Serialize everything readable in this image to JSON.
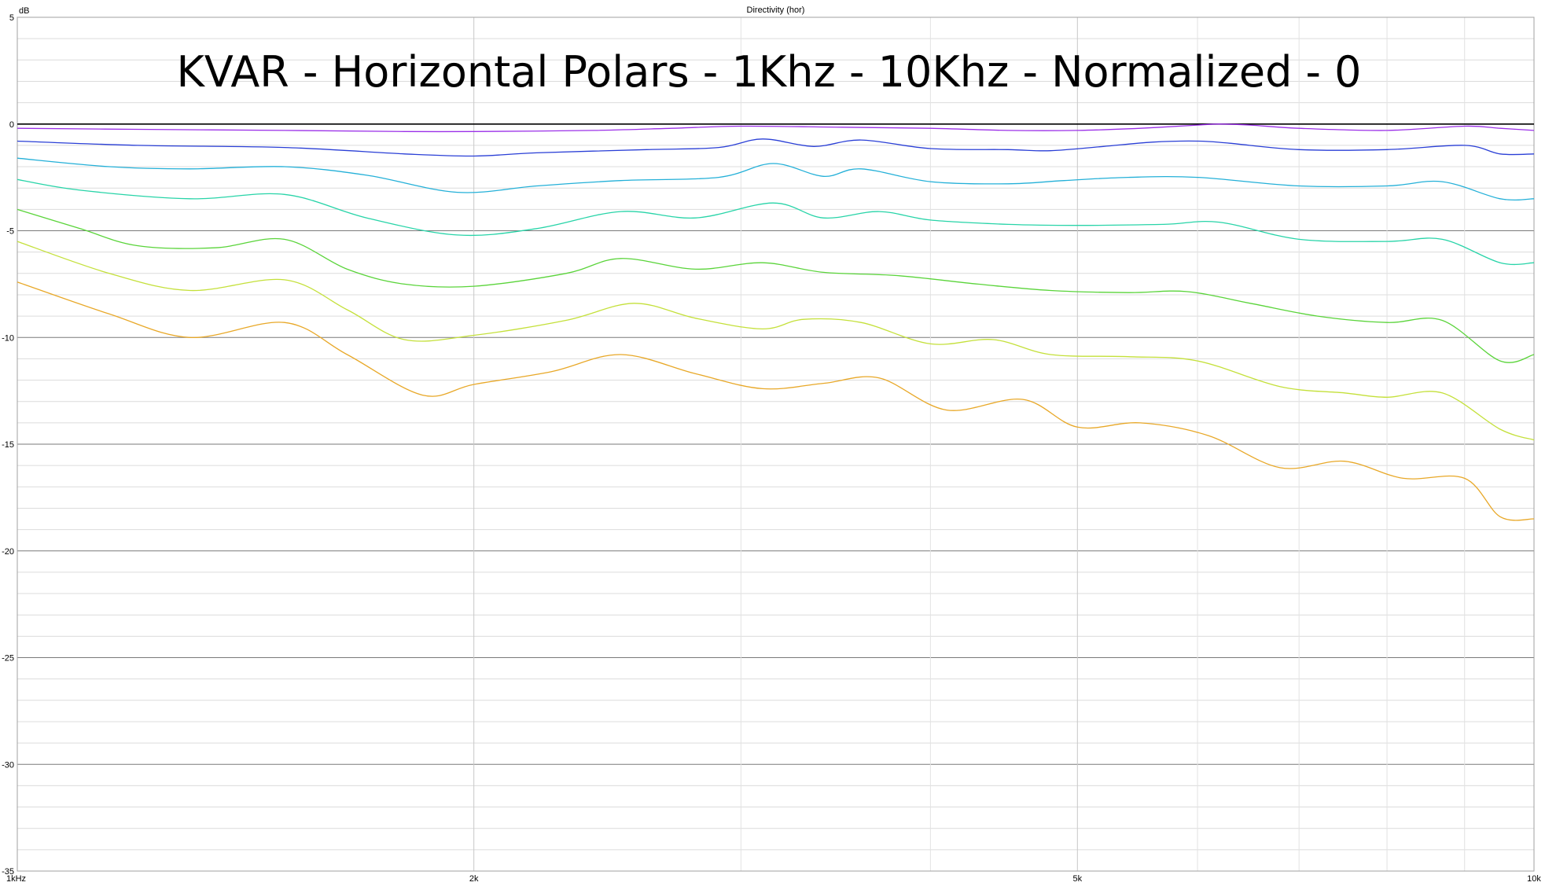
{
  "chart_data": {
    "type": "line",
    "title": "Directivity (hor)",
    "annotation": "KVAR - Horizontal Polars - 1Khz - 10Khz - Normalized - 0",
    "ylabel": "dB",
    "xlabel": "",
    "x_scale": "log",
    "xlim": [
      1000,
      10000
    ],
    "ylim": [
      -35,
      5
    ],
    "x_ticks": [
      {
        "value": 1000,
        "label": "1kHz"
      },
      {
        "value": 2000,
        "label": "2k"
      },
      {
        "value": 5000,
        "label": "5k"
      },
      {
        "value": 10000,
        "label": "10k"
      }
    ],
    "y_ticks": [
      {
        "value": 5,
        "label": "5"
      },
      {
        "value": 0,
        "label": "0"
      },
      {
        "value": -5,
        "label": "-5"
      },
      {
        "value": -10,
        "label": "-10"
      },
      {
        "value": -15,
        "label": "-15"
      },
      {
        "value": -20,
        "label": "-20"
      },
      {
        "value": -25,
        "label": "-25"
      },
      {
        "value": -30,
        "label": "-30"
      },
      {
        "value": -35,
        "label": "-35"
      }
    ],
    "grid": true,
    "series": [
      {
        "color": "#000000",
        "points": [
          [
            1000,
            0
          ],
          [
            10000,
            0
          ]
        ]
      },
      {
        "color": "#9b30e8",
        "points": [
          [
            1000,
            -0.2
          ],
          [
            1200,
            -0.25
          ],
          [
            1500,
            -0.3
          ],
          [
            1800,
            -0.35
          ],
          [
            2000,
            -0.35
          ],
          [
            2400,
            -0.3
          ],
          [
            2700,
            -0.2
          ],
          [
            3000,
            -0.1
          ],
          [
            3500,
            -0.15
          ],
          [
            4000,
            -0.2
          ],
          [
            4500,
            -0.3
          ],
          [
            5000,
            -0.3
          ],
          [
            5500,
            -0.2
          ],
          [
            6000,
            -0.05
          ],
          [
            6200,
            0.0
          ],
          [
            6500,
            -0.05
          ],
          [
            7000,
            -0.2
          ],
          [
            8000,
            -0.3
          ],
          [
            9000,
            -0.1
          ],
          [
            9500,
            -0.2
          ],
          [
            10000,
            -0.3
          ]
        ]
      },
      {
        "color": "#2a3fd6",
        "points": [
          [
            1000,
            -0.8
          ],
          [
            1200,
            -1.0
          ],
          [
            1500,
            -1.1
          ],
          [
            1800,
            -1.4
          ],
          [
            2000,
            -1.5
          ],
          [
            2200,
            -1.35
          ],
          [
            2600,
            -1.2
          ],
          [
            2900,
            -1.1
          ],
          [
            3100,
            -0.7
          ],
          [
            3350,
            -1.05
          ],
          [
            3600,
            -0.75
          ],
          [
            4000,
            -1.15
          ],
          [
            4500,
            -1.2
          ],
          [
            4800,
            -1.25
          ],
          [
            5200,
            -1.05
          ],
          [
            5600,
            -0.85
          ],
          [
            6000,
            -0.8
          ],
          [
            6300,
            -0.9
          ],
          [
            7000,
            -1.2
          ],
          [
            8000,
            -1.2
          ],
          [
            9000,
            -1.0
          ],
          [
            9500,
            -1.4
          ],
          [
            10000,
            -1.4
          ]
        ]
      },
      {
        "color": "#24b0d8",
        "points": [
          [
            1000,
            -1.6
          ],
          [
            1150,
            -2.0
          ],
          [
            1300,
            -2.1
          ],
          [
            1500,
            -2.0
          ],
          [
            1700,
            -2.4
          ],
          [
            1950,
            -3.2
          ],
          [
            2200,
            -2.9
          ],
          [
            2500,
            -2.65
          ],
          [
            2900,
            -2.5
          ],
          [
            3150,
            -1.85
          ],
          [
            3400,
            -2.45
          ],
          [
            3600,
            -2.1
          ],
          [
            4000,
            -2.7
          ],
          [
            4500,
            -2.8
          ],
          [
            4900,
            -2.65
          ],
          [
            5400,
            -2.5
          ],
          [
            6000,
            -2.5
          ],
          [
            7000,
            -2.9
          ],
          [
            8000,
            -2.9
          ],
          [
            8700,
            -2.7
          ],
          [
            9500,
            -3.5
          ],
          [
            10000,
            -3.5
          ]
        ]
      },
      {
        "color": "#28d4a8",
        "points": [
          [
            1000,
            -2.6
          ],
          [
            1100,
            -3.1
          ],
          [
            1300,
            -3.5
          ],
          [
            1500,
            -3.3
          ],
          [
            1700,
            -4.4
          ],
          [
            1950,
            -5.2
          ],
          [
            2200,
            -4.9
          ],
          [
            2500,
            -4.1
          ],
          [
            2800,
            -4.4
          ],
          [
            3150,
            -3.7
          ],
          [
            3400,
            -4.4
          ],
          [
            3700,
            -4.1
          ],
          [
            4000,
            -4.5
          ],
          [
            4500,
            -4.7
          ],
          [
            5000,
            -4.75
          ],
          [
            5700,
            -4.7
          ],
          [
            6200,
            -4.6
          ],
          [
            7000,
            -5.4
          ],
          [
            8000,
            -5.5
          ],
          [
            8700,
            -5.4
          ],
          [
            9500,
            -6.5
          ],
          [
            10000,
            -6.5
          ]
        ]
      },
      {
        "color": "#5ad43a",
        "points": [
          [
            1000,
            -4.0
          ],
          [
            1100,
            -4.9
          ],
          [
            1200,
            -5.7
          ],
          [
            1350,
            -5.8
          ],
          [
            1500,
            -5.4
          ],
          [
            1650,
            -6.8
          ],
          [
            1800,
            -7.5
          ],
          [
            2000,
            -7.6
          ],
          [
            2300,
            -7.0
          ],
          [
            2500,
            -6.3
          ],
          [
            2800,
            -6.8
          ],
          [
            3100,
            -6.5
          ],
          [
            3400,
            -6.95
          ],
          [
            3800,
            -7.1
          ],
          [
            4300,
            -7.5
          ],
          [
            4800,
            -7.8
          ],
          [
            5400,
            -7.9
          ],
          [
            5900,
            -7.85
          ],
          [
            6500,
            -8.4
          ],
          [
            7200,
            -9.0
          ],
          [
            8000,
            -9.3
          ],
          [
            8700,
            -9.2
          ],
          [
            9500,
            -11.1
          ],
          [
            10000,
            -10.8
          ]
        ]
      },
      {
        "color": "#c4e03a",
        "points": [
          [
            1000,
            -5.5
          ],
          [
            1150,
            -7.0
          ],
          [
            1300,
            -7.8
          ],
          [
            1500,
            -7.3
          ],
          [
            1650,
            -8.7
          ],
          [
            1800,
            -10.1
          ],
          [
            2000,
            -9.9
          ],
          [
            2300,
            -9.2
          ],
          [
            2550,
            -8.4
          ],
          [
            2800,
            -9.1
          ],
          [
            3100,
            -9.6
          ],
          [
            3300,
            -9.15
          ],
          [
            3600,
            -9.3
          ],
          [
            4000,
            -10.3
          ],
          [
            4400,
            -10.1
          ],
          [
            4800,
            -10.8
          ],
          [
            5400,
            -10.9
          ],
          [
            6000,
            -11.1
          ],
          [
            6800,
            -12.3
          ],
          [
            7500,
            -12.6
          ],
          [
            8000,
            -12.8
          ],
          [
            8700,
            -12.6
          ],
          [
            9500,
            -14.3
          ],
          [
            10000,
            -14.8
          ]
        ]
      },
      {
        "color": "#e8a828",
        "points": [
          [
            1000,
            -7.4
          ],
          [
            1150,
            -8.9
          ],
          [
            1300,
            -10.0
          ],
          [
            1500,
            -9.3
          ],
          [
            1650,
            -10.8
          ],
          [
            1850,
            -12.7
          ],
          [
            2000,
            -12.2
          ],
          [
            2250,
            -11.6
          ],
          [
            2500,
            -10.8
          ],
          [
            2800,
            -11.7
          ],
          [
            3100,
            -12.4
          ],
          [
            3400,
            -12.15
          ],
          [
            3700,
            -11.9
          ],
          [
            4100,
            -13.4
          ],
          [
            4600,
            -12.9
          ],
          [
            5000,
            -14.2
          ],
          [
            5500,
            -14.0
          ],
          [
            6100,
            -14.6
          ],
          [
            6800,
            -16.1
          ],
          [
            7500,
            -15.8
          ],
          [
            8200,
            -16.6
          ],
          [
            9000,
            -16.6
          ],
          [
            9500,
            -18.4
          ],
          [
            10000,
            -18.5
          ]
        ]
      }
    ]
  }
}
